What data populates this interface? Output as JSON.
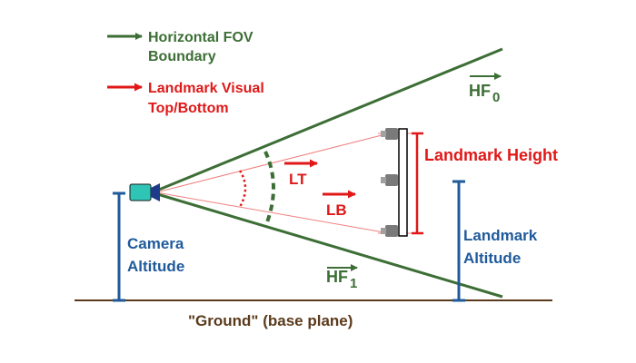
{
  "legend": {
    "fov_line1": "Horizontal FOV",
    "fov_line2": "Boundary",
    "landmark_line1": "Landmark Visual",
    "landmark_line2": "Top/Bottom",
    "fov_color": "#3c6e35",
    "landmark_color": "#e01818"
  },
  "labels": {
    "hf0_main": "HF",
    "hf0_sub": "0",
    "hf1_main": "HF",
    "hf1_sub": "1",
    "lt": "LT",
    "lb": "LB",
    "landmark_height": "Landmark Height",
    "landmark_altitude_line1": "Landmark",
    "landmark_altitude_line2": "Altitude",
    "camera_altitude_line1": "Camera",
    "camera_altitude_line2": "Altitude",
    "ground": "\"Ground\" (base plane)"
  },
  "colors": {
    "altitude": "#1f5a9a",
    "ground": "#5a3a1a",
    "camera": "#2ec4b6",
    "light": "#808080"
  },
  "icons": {
    "camera": "video-camera-icon",
    "landmark": "light-bar-icon"
  }
}
